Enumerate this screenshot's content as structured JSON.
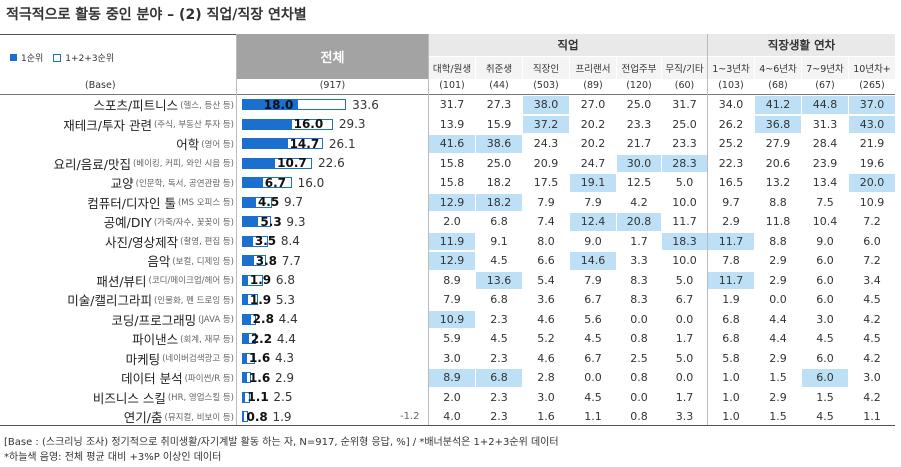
{
  "title": "적극적으로 활동 중인 분야 – (2) 직업/직장 연차별",
  "legend": {
    "first": "1순위",
    "combined": "1+2+3순위"
  },
  "header": {
    "total": "전체",
    "group_job": "직업",
    "group_years": "직장생활 연차",
    "job_cols": [
      "대학/원생",
      "취준생",
      "직장인",
      "프리랜서",
      "전업주부",
      "무직/기타"
    ],
    "year_cols": [
      "1~3년차",
      "4~6년차",
      "7~9년차",
      "10년차+"
    ]
  },
  "base": {
    "label": "(Base)",
    "total": "(917)",
    "cols": [
      "(101)",
      "(44)",
      "(503)",
      "(89)",
      "(120)",
      "(60)",
      "(103)",
      "(68)",
      "(67)",
      "(265)"
    ]
  },
  "highlight_color": "#bde0f7",
  "bar_color": "#1a6fcf",
  "chart_data": {
    "type": "table",
    "series": [
      {
        "name": "1순위"
      },
      {
        "name": "1+2+3순위"
      }
    ],
    "rows": [
      {
        "label": "스포츠/피트니스",
        "sub": "(헬스, 등산 등)",
        "first": 18.0,
        "top3": 33.6,
        "first_label": "18.0",
        "top3_label": "33.6",
        "cols": [
          "31.7",
          "27.3",
          "38.0",
          "27.0",
          "25.0",
          "31.7",
          "34.0",
          "41.2",
          "44.8",
          "37.0"
        ],
        "hl": [
          2,
          7,
          8,
          9
        ]
      },
      {
        "label": "재테크/투자 관련",
        "sub": "(주식, 부동산 투자 등)",
        "first": 16.0,
        "top3": 29.3,
        "first_label": "16.0",
        "top3_label": "29.3",
        "cols": [
          "13.9",
          "15.9",
          "37.2",
          "20.2",
          "23.3",
          "25.0",
          "26.2",
          "36.8",
          "31.3",
          "43.0"
        ],
        "hl": [
          2,
          7,
          9
        ]
      },
      {
        "label": "어학",
        "sub": "(영어 등)",
        "first": 14.7,
        "top3": 26.1,
        "first_label": "14.7",
        "top3_label": "26.1",
        "cols": [
          "41.6",
          "38.6",
          "24.3",
          "20.2",
          "21.7",
          "23.3",
          "25.2",
          "27.9",
          "28.4",
          "21.9"
        ],
        "hl": [
          0,
          1
        ]
      },
      {
        "label": "요리/음료/맛집",
        "sub": "(베이킹, 커피, 와인 시음 등)",
        "first": 10.7,
        "top3": 22.6,
        "first_label": "10.7",
        "top3_label": "22.6",
        "cols": [
          "15.8",
          "25.0",
          "20.9",
          "24.7",
          "30.0",
          "28.3",
          "22.3",
          "20.6",
          "23.9",
          "19.6"
        ],
        "hl": [
          4,
          5
        ]
      },
      {
        "label": "교양",
        "sub": "(인문학, 독서, 공연관람 등)",
        "first": 6.7,
        "top3": 16.0,
        "first_label": "6.7",
        "top3_label": "16.0",
        "cols": [
          "15.8",
          "18.2",
          "17.5",
          "19.1",
          "12.5",
          "5.0",
          "16.5",
          "13.2",
          "13.4",
          "20.0"
        ],
        "hl": [
          3,
          9
        ]
      },
      {
        "label": "컴퓨터/디자인 툴",
        "sub": "(MS 오피스 등)",
        "first": 4.5,
        "top3": 9.7,
        "first_label": "4.5",
        "top3_label": "9.7",
        "cols": [
          "12.9",
          "18.2",
          "7.9",
          "7.9",
          "4.2",
          "10.0",
          "9.7",
          "8.8",
          "7.5",
          "10.9"
        ],
        "hl": [
          0,
          1
        ]
      },
      {
        "label": "공예/DIY",
        "sub": "(가죽/자수, 꽃꽂이 등)",
        "first": 5.3,
        "top3": 9.3,
        "first_label": "5.3",
        "top3_label": "9.3",
        "cols": [
          "2.0",
          "6.8",
          "7.4",
          "12.4",
          "20.8",
          "11.7",
          "2.9",
          "11.8",
          "10.4",
          "7.2"
        ],
        "hl": [
          3,
          4
        ]
      },
      {
        "label": "사진/영상제작",
        "sub": "(촬영, 편집 등)",
        "first": 3.5,
        "top3": 8.4,
        "first_label": "3.5",
        "top3_label": "8.4",
        "cols": [
          "11.9",
          "9.1",
          "8.0",
          "9.0",
          "1.7",
          "18.3",
          "11.7",
          "8.8",
          "9.0",
          "6.0"
        ],
        "hl": [
          0,
          5,
          6
        ]
      },
      {
        "label": "음악",
        "sub": "(보컬, 디제잉 등)",
        "first": 3.8,
        "top3": 7.7,
        "first_label": "3.8",
        "top3_label": "7.7",
        "cols": [
          "12.9",
          "4.5",
          "6.6",
          "14.6",
          "3.3",
          "10.0",
          "7.8",
          "2.9",
          "6.0",
          "7.2"
        ],
        "hl": [
          0,
          3
        ]
      },
      {
        "label": "패션/뷰티",
        "sub": "(코디/메이크업/헤어 등)",
        "first": 1.9,
        "top3": 6.8,
        "first_label": "1.9",
        "top3_label": "6.8",
        "cols": [
          "8.9",
          "13.6",
          "5.4",
          "7.9",
          "8.3",
          "5.0",
          "11.7",
          "2.9",
          "6.0",
          "3.4"
        ],
        "hl": [
          1,
          6
        ]
      },
      {
        "label": "미술/캘리그라피",
        "sub": "(인물화, 펜 드로잉 등)",
        "first": 1.9,
        "top3": 5.3,
        "first_label": "1.9",
        "top3_label": "5.3",
        "cols": [
          "7.9",
          "6.8",
          "3.6",
          "6.7",
          "8.3",
          "6.7",
          "1.9",
          "0.0",
          "6.0",
          "4.5"
        ],
        "hl": []
      },
      {
        "label": "코딩/프로그래밍",
        "sub": "(JAVA 등)",
        "first": 2.8,
        "top3": 4.4,
        "first_label": "2.8",
        "top3_label": "4.4",
        "cols": [
          "10.9",
          "2.3",
          "4.6",
          "5.6",
          "0.0",
          "0.0",
          "6.8",
          "4.4",
          "3.0",
          "4.2"
        ],
        "hl": [
          0
        ]
      },
      {
        "label": "파이낸스",
        "sub": "(회계, 재무 등)",
        "first": 2.2,
        "top3": 4.4,
        "first_label": "2.2",
        "top3_label": "4.4",
        "cols": [
          "5.9",
          "4.5",
          "5.2",
          "4.5",
          "0.8",
          "1.7",
          "6.8",
          "4.4",
          "4.5",
          "4.5"
        ],
        "hl": []
      },
      {
        "label": "마케팅",
        "sub": "(네이버검색광고 등)",
        "first": 1.6,
        "top3": 4.3,
        "first_label": "1.6",
        "top3_label": "4.3",
        "cols": [
          "3.0",
          "2.3",
          "4.6",
          "6.7",
          "2.5",
          "5.0",
          "5.8",
          "2.9",
          "6.0",
          "4.2"
        ],
        "hl": []
      },
      {
        "label": "데이터 분석",
        "sub": "(파이썬/R 등)",
        "first": 1.6,
        "top3": 2.9,
        "first_label": "1.6",
        "top3_label": "2.9",
        "cols": [
          "8.9",
          "6.8",
          "2.8",
          "0.0",
          "0.8",
          "0.0",
          "1.0",
          "1.5",
          "6.0",
          "3.0"
        ],
        "hl": [
          0,
          1,
          8
        ]
      },
      {
        "label": "비즈니스 스킬",
        "sub": "(HR, 영업스킬 등)",
        "first": 1.1,
        "top3": 2.5,
        "first_label": "1.1",
        "top3_label": "2.5",
        "cols": [
          "2.0",
          "2.3",
          "3.0",
          "4.5",
          "0.0",
          "1.7",
          "1.0",
          "2.9",
          "1.5",
          "4.2"
        ],
        "hl": []
      },
      {
        "label": "연기/춤",
        "sub": "(뮤지컬, 비보이 등)",
        "first": 0.8,
        "top3": 1.9,
        "first_label": "0.8",
        "top3_label": "1.9",
        "cols": [
          "4.0",
          "2.3",
          "1.6",
          "1.1",
          "0.8",
          "3.3",
          "1.0",
          "1.5",
          "4.5",
          "1.1"
        ],
        "hl": []
      }
    ],
    "annotations": [
      "-1.2"
    ]
  },
  "footnotes": [
    "[Base : (스크리닝 조사) 정기적으로 취미생활/자기계발 활동 하는 자, N=917, 순위형 응답, %] / *배너분석은 1+2+3순위 데이터",
    "*하늘색 음영: 전체 평균 대비 +3%P 이상인 데이터"
  ]
}
